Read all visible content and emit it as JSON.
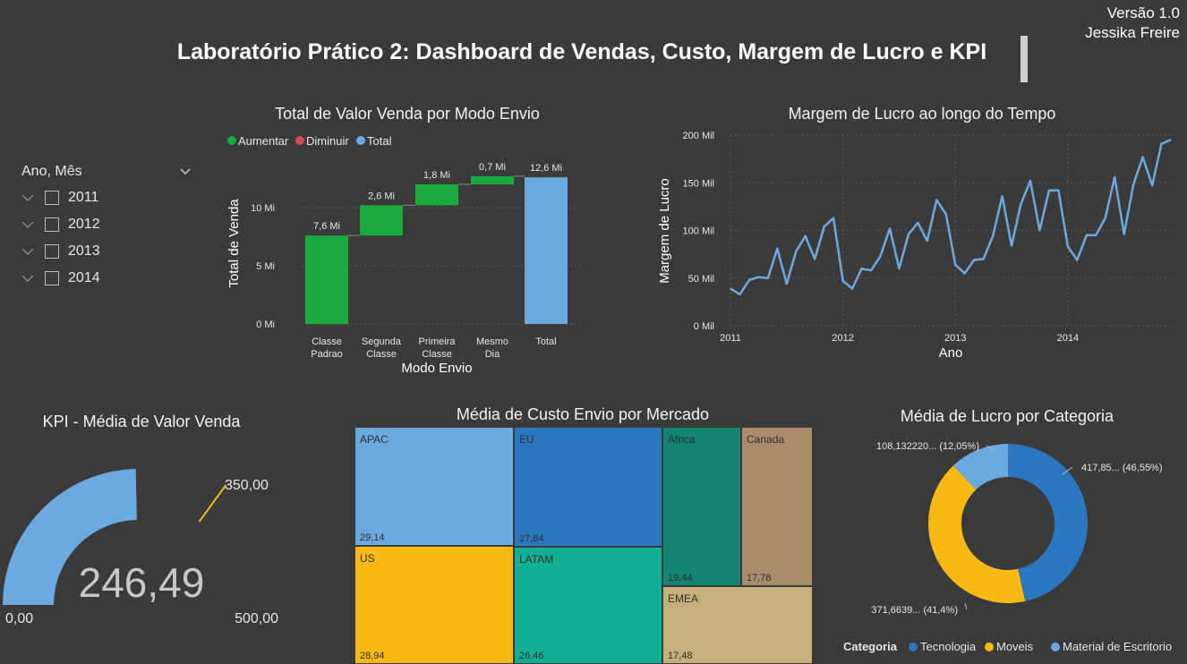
{
  "header": {
    "version": "Versão 1.0",
    "author": "Jessika Freire",
    "title": "Laboratório Prático 2: Dashboard de Vendas, Custo, Margem de Lucro e KPI"
  },
  "slicer": {
    "title": "Ano, Mês",
    "items": [
      {
        "label": "2011"
      },
      {
        "label": "2012"
      },
      {
        "label": "2013"
      },
      {
        "label": "2014"
      }
    ]
  },
  "colors": {
    "background": "#3a3a3a",
    "increase": "#1aab40",
    "decrease": "#d64550",
    "total": "#6ca9de",
    "line": "#6ca9de",
    "tecnologia": "#2a76bf",
    "moveis": "#f9b915",
    "material": "#6ca9de"
  },
  "chart_data": [
    {
      "type": "waterfall",
      "title": "Total de Valor Venda por Modo Envio",
      "xlabel": "Modo Envio",
      "ylabel": "Total de Venda",
      "legend": [
        "Aumentar",
        "Diminuir",
        "Total"
      ],
      "categories": [
        "Classe Padrao",
        "Segunda Classe",
        "Primeira Classe",
        "Mesmo Dia",
        "Total"
      ],
      "category_lines": [
        [
          "Classe",
          "Padrao"
        ],
        [
          "Segunda",
          "Classe"
        ],
        [
          "Primeira",
          "Classe"
        ],
        [
          "Mesmo",
          "Dia"
        ],
        [
          "Total"
        ]
      ],
      "values": [
        7.6,
        2.6,
        1.8,
        0.7,
        12.6
      ],
      "data_labels": [
        "7,6 Mi",
        "2,6 Mi",
        "1,8 Mi",
        "0,7 Mi",
        "12,6 Mi"
      ],
      "yticks": [
        "0 Mi",
        "5 Mi",
        "10 Mi"
      ],
      "ylim": [
        0,
        14
      ]
    },
    {
      "type": "line",
      "title": "Margem de Lucro ao longo do Tempo",
      "xlabel": "Ano",
      "ylabel": "Margem de Lucro",
      "xticks": [
        "2011",
        "2012",
        "2013",
        "2014"
      ],
      "yticks": [
        "0 Mil",
        "50 Mil",
        "100 Mil",
        "150 Mil",
        "200 Mil"
      ],
      "ylim": [
        0,
        200
      ],
      "x_start": "2011-01",
      "values": [
        39,
        33,
        48,
        51,
        50,
        81,
        44,
        78,
        94,
        70,
        104,
        113,
        47,
        39,
        60,
        58,
        73,
        102,
        60,
        96,
        108,
        89,
        132,
        117,
        64,
        55,
        69,
        70,
        94,
        136,
        84,
        128,
        152,
        100,
        142,
        142,
        83,
        69,
        95,
        95,
        113,
        156,
        96,
        148,
        177,
        147,
        191,
        195
      ]
    },
    {
      "type": "treemap",
      "title": "Média de Custo Envio por Mercado",
      "items": [
        {
          "name": "APAC",
          "value": "29,14",
          "color": "#6ca9de"
        },
        {
          "name": "US",
          "value": "28,94",
          "color": "#f9b915"
        },
        {
          "name": "EU",
          "value": "27,84",
          "color": "#2a76bf"
        },
        {
          "name": "LATAM",
          "value": "26,46",
          "color": "#11b096"
        },
        {
          "name": "Africa",
          "value": "19,44",
          "color": "#128571"
        },
        {
          "name": "Canada",
          "value": "17,78",
          "color": "#a88c6b"
        },
        {
          "name": "EMEA",
          "value": "17,48",
          "color": "#c5b07b"
        }
      ]
    },
    {
      "type": "pie",
      "title": "Média de Lucro por Categoria",
      "legend_title": "Categoria",
      "slices": [
        {
          "name": "Tecnologia",
          "percent": 46.55,
          "label": "417,85... (46,55%)"
        },
        {
          "name": "Moveis",
          "percent": 41.4,
          "label": "371,6639... (41,4%)"
        },
        {
          "name": "Material de Escritorio",
          "percent": 12.05,
          "label": "108,132220... (12,05%)"
        }
      ]
    }
  ],
  "kpi": {
    "title": "KPI - Média de Valor Venda",
    "value": 246.49,
    "value_label": "246,49",
    "min_label": "0,00",
    "max_label": "500,00",
    "target": 350,
    "target_label": "350,00",
    "max": 500
  }
}
